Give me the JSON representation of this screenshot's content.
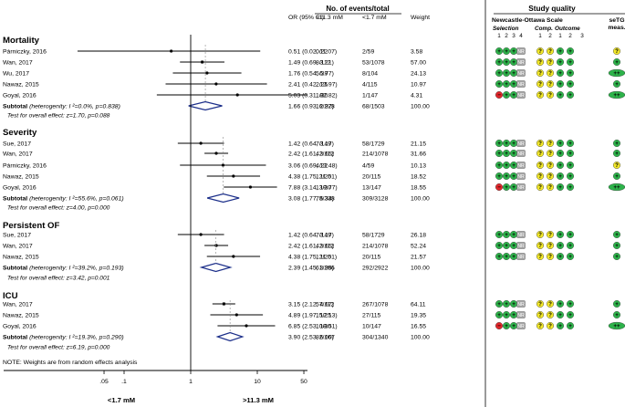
{
  "chart_data": {
    "type": "forest",
    "x_scale": "log",
    "xlim": [
      0.05,
      50
    ],
    "null_line": 1,
    "x_ticks": [
      {
        "v": 0.05,
        "label": ".05"
      },
      {
        "v": 0.1,
        "label": ".1"
      },
      {
        "v": 1,
        "label": "1"
      },
      {
        "v": 10,
        "label": "10"
      },
      {
        "v": 50,
        "label": "50"
      }
    ],
    "x_axis_left_label": "<1.7 mM",
    "x_axis_right_label": ">11.3 mM",
    "headers": {
      "or_ci": "OR (95% CI)",
      "events_title": "No. of events/total",
      "events_high": ">11.3 mM",
      "events_low": "<1.7 mM",
      "weight": "Weight",
      "quality_title": "Study quality",
      "nos_title": "Newcastle-Ottawa Scale",
      "setg_title": "seTG",
      "setg_sub": "meas.",
      "selection": "Selection",
      "comp": "Comp.",
      "outcome": "Outcome",
      "sel_nums": [
        "1",
        "2",
        "3",
        "4"
      ],
      "comp_nums": [
        "1",
        "2"
      ],
      "out_nums": [
        "1",
        "2",
        "3"
      ]
    },
    "quality_symbols": {
      "plus": "+",
      "question": "?",
      "minus": "−",
      "na": "NR",
      "plusplus": "++"
    },
    "colors": {
      "green": "#2db34a",
      "yellow": "#f2e829",
      "red": "#e0262a",
      "gray": "#a6a6a6",
      "diamond": "#1c2f8a"
    },
    "groups": [
      {
        "name": "Mortality",
        "studies": [
          {
            "label": "Párniczky, 2016",
            "or": 0.51,
            "lo": 0.02,
            "hi": 11.07,
            "ci_text": "0.51 (0.02, 11.07)",
            "high": "0/22",
            "low": "2/59",
            "weight": "3.58",
            "quality": [
              "g",
              "g",
              "g",
              "n",
              "y",
              "y",
              "g",
              "g"
            ],
            "setg": "y"
          },
          {
            "label": "Wan, 2017",
            "or": 1.49,
            "lo": 0.69,
            "hi": 3.21,
            "ci_text": "1.49 (0.69, 3.21)",
            "high": "8/112",
            "low": "53/1078",
            "weight": "57.00",
            "quality": [
              "g",
              "g",
              "g",
              "n",
              "y",
              "y",
              "g",
              "g"
            ],
            "setg": "g"
          },
          {
            "label": "Wu, 2017",
            "or": 1.76,
            "lo": 0.54,
            "hi": 5.77,
            "ci_text": "1.76 (0.54, 5.77)",
            "high": "5/39",
            "low": "8/104",
            "weight": "24.13",
            "quality": [
              "g",
              "g",
              "g",
              "n",
              "y",
              "y",
              "g",
              "g"
            ],
            "setg": "gg"
          },
          {
            "label": "Nawaz, 2015",
            "or": 2.41,
            "lo": 0.42,
            "hi": 13.97,
            "ci_text": "2.41 (0.42, 13.97)",
            "high": "2/25",
            "low": "4/115",
            "weight": "10.97",
            "quality": [
              "g",
              "g",
              "g",
              "n",
              "y",
              "y",
              "g",
              "g"
            ],
            "setg": "g"
          },
          {
            "label": "Goyal, 2016",
            "or": 5.03,
            "lo": 0.31,
            "hi": 82.82,
            "ci_text": "5.03 (0.31, 82.82)",
            "high": "1/30",
            "low": "1/147",
            "weight": "4.31",
            "quality": [
              "r",
              "g",
              "g",
              "n",
              "y",
              "y",
              "g",
              "g"
            ],
            "setg": "gg"
          }
        ],
        "subtotal": {
          "label": "Subtotal",
          "het": "(heterogenity: I ²=0.0%, p=0.838)",
          "or": 1.66,
          "lo": 0.93,
          "hi": 2.97,
          "ci_text": "1.66 (0.93, 2.97)",
          "high": "16/228",
          "low": "68/1503",
          "weight": "100.00"
        },
        "test": "Test for overall effect: z=1.70, p=0.088"
      },
      {
        "name": "Severity",
        "studies": [
          {
            "label": "Sue, 2017",
            "or": 1.42,
            "lo": 0.64,
            "hi": 3.17,
            "ci_text": "1.42 (0.64, 3.17)",
            "high": "7/149",
            "low": "58/1729",
            "weight": "21.15",
            "quality": [
              "g",
              "g",
              "g",
              "n",
              "y",
              "y",
              "g",
              "g"
            ],
            "setg": "g"
          },
          {
            "label": "Wan, 2017",
            "or": 2.42,
            "lo": 1.61,
            "hi": 3.65,
            "ci_text": "2.42 (1.61, 3.65)",
            "high": "42/112",
            "low": "214/1078",
            "weight": "31.66",
            "quality": [
              "g",
              "g",
              "g",
              "n",
              "y",
              "y",
              "g",
              "g"
            ],
            "setg": "g"
          },
          {
            "label": "Párniczky, 2016",
            "or": 3.06,
            "lo": 0.69,
            "hi": 13.48,
            "ci_text": "3.06 (0.69, 13.48)",
            "high": "4/22",
            "low": "4/59",
            "weight": "10.13",
            "quality": [
              "g",
              "g",
              "g",
              "n",
              "y",
              "y",
              "g",
              "g"
            ],
            "setg": "y"
          },
          {
            "label": "Nawaz, 2015",
            "or": 4.38,
            "lo": 1.75,
            "hi": 11.01,
            "ci_text": "4.38 (1.75, 11.01)",
            "high": "12/25",
            "low": "20/115",
            "weight": "18.52",
            "quality": [
              "g",
              "g",
              "g",
              "n",
              "y",
              "y",
              "g",
              "g"
            ],
            "setg": "g"
          },
          {
            "label": "Goyal, 2016",
            "or": 7.88,
            "lo": 3.14,
            "hi": 19.77,
            "ci_text": "7.88 (3.14, 19.77)",
            "high": "13/30",
            "low": "13/147",
            "weight": "18.55",
            "quality": [
              "r",
              "g",
              "g",
              "n",
              "y",
              "y",
              "g",
              "g"
            ],
            "setg": "gg"
          }
        ],
        "subtotal": {
          "label": "Subtotal",
          "het": "(heterogenity: I ²=55.6%, p=0.061)",
          "or": 3.08,
          "lo": 1.77,
          "hi": 5.34,
          "ci_text": "3.08 (1.77, 5.34)",
          "high": "78/338",
          "low": "309/3128",
          "weight": "100.00"
        },
        "test": "Test for overall effect: z=4.00, p=0.000"
      },
      {
        "name": "Persistent OF",
        "studies": [
          {
            "label": "Sue, 2017",
            "or": 1.42,
            "lo": 0.64,
            "hi": 3.17,
            "ci_text": "1.42 (0.64, 3.17)",
            "high": "7/149",
            "low": "58/1729",
            "weight": "26.18",
            "quality": [
              "g",
              "g",
              "g",
              "n",
              "y",
              "y",
              "g",
              "g"
            ],
            "setg": "g"
          },
          {
            "label": "Wan, 2017",
            "or": 2.42,
            "lo": 1.61,
            "hi": 3.65,
            "ci_text": "2.42 (1.61, 3.65)",
            "high": "42/112",
            "low": "214/1078",
            "weight": "52.24",
            "quality": [
              "g",
              "g",
              "g",
              "n",
              "y",
              "y",
              "g",
              "g"
            ],
            "setg": "g"
          },
          {
            "label": "Nawaz, 2015",
            "or": 4.38,
            "lo": 1.75,
            "hi": 11.01,
            "ci_text": "4.38 (1.75, 11.01)",
            "high": "12/25",
            "low": "20/115",
            "weight": "21.57",
            "quality": [
              "g",
              "g",
              "g",
              "n",
              "y",
              "y",
              "g",
              "g"
            ],
            "setg": "g"
          }
        ],
        "subtotal": {
          "label": "Subtotal",
          "het": "(heterogenity: I ²=39.2%, p=0.193)",
          "or": 2.39,
          "lo": 1.45,
          "hi": 3.95,
          "ci_text": "2.39 (1.45, 3.95)",
          "high": "61/286",
          "low": "292/2922",
          "weight": "100.00"
        },
        "test": "Test for overall effect: z=3.42, p=0.001"
      },
      {
        "name": "ICU",
        "studies": [
          {
            "label": "Wan, 2017",
            "or": 3.15,
            "lo": 2.12,
            "hi": 4.67,
            "ci_text": "3.15 (2.12, 4.67)",
            "high": "57/112",
            "low": "267/1078",
            "weight": "64.11",
            "quality": [
              "g",
              "g",
              "g",
              "n",
              "y",
              "y",
              "g",
              "g"
            ],
            "setg": "g"
          },
          {
            "label": "Nawaz, 2015",
            "or": 4.89,
            "lo": 1.97,
            "hi": 12.13,
            "ci_text": "4.89 (1.97, 12.13)",
            "high": "15/25",
            "low": "27/115",
            "weight": "19.35",
            "quality": [
              "g",
              "g",
              "g",
              "n",
              "y",
              "y",
              "g",
              "g"
            ],
            "setg": "g"
          },
          {
            "label": "Goyal, 2016",
            "or": 6.85,
            "lo": 2.53,
            "hi": 18.51,
            "ci_text": "6.85 (2.53, 18.51)",
            "high": "10/30",
            "low": "10/147",
            "weight": "16.55",
            "quality": [
              "r",
              "g",
              "g",
              "n",
              "y",
              "y",
              "g",
              "g"
            ],
            "setg": "gg"
          }
        ],
        "subtotal": {
          "label": "Subtotal",
          "het": "(heterogenity: I ²=19.3%, p=0.290)",
          "or": 3.9,
          "lo": 2.53,
          "hi": 6.0,
          "ci_text": "3.90 (2.53, 6.00)",
          "high": "82/167",
          "low": "304/1340",
          "weight": "100.00"
        },
        "test": "Test for overall effect: z=6.19, p=0.000"
      }
    ],
    "note": "NOTE: Weights are from random effects analysis"
  }
}
